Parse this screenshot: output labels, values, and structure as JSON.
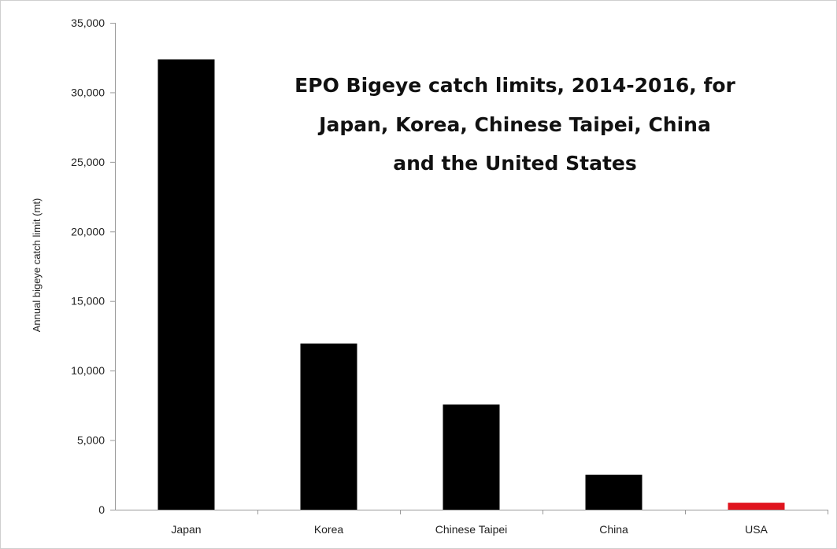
{
  "chart_data": {
    "type": "bar",
    "title_lines": [
      "EPO Bigeye catch limits, 2014-2016, for",
      "Japan, Korea, Chinese Taipei, China",
      "and the United States"
    ],
    "ylabel": "Annual bigeye catch limit (mt)",
    "xlabel": "",
    "categories": [
      "Japan",
      "Korea",
      "Chinese Taipei",
      "China",
      "USA"
    ],
    "values": [
      32372,
      11947,
      7555,
      2507,
      500
    ],
    "bar_colors": [
      "#000000",
      "#000000",
      "#000000",
      "#000000",
      "#e0141e"
    ],
    "ylim": [
      0,
      35000
    ],
    "yticks": [
      0,
      5000,
      10000,
      15000,
      20000,
      25000,
      30000,
      35000
    ],
    "ytick_labels": [
      "0",
      "5,000",
      "10,000",
      "15,000",
      "20,000",
      "25,000",
      "30,000",
      "35,000"
    ],
    "grid": false,
    "legend": "none"
  }
}
